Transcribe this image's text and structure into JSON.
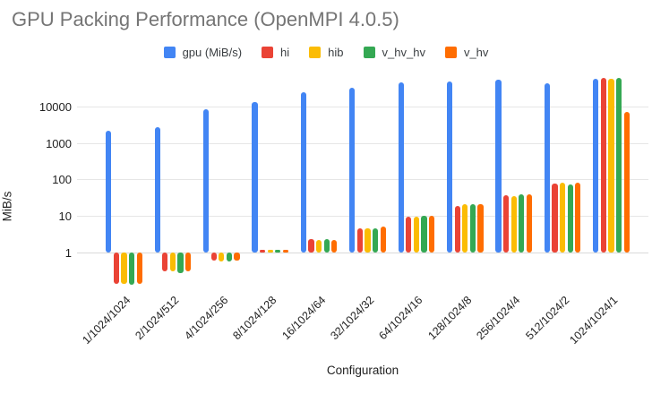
{
  "chart_data": {
    "type": "bar",
    "title": "GPU Packing Performance (OpenMPI 4.0.5)",
    "xlabel": "Configuration",
    "ylabel": "MiB/s",
    "y_scale": "log",
    "y_ticks": [
      1,
      10,
      100,
      1000,
      10000
    ],
    "ylim": [
      0.1,
      70000
    ],
    "grid": true,
    "legend_position": "top",
    "categories": [
      "1/1024/1024",
      "2/1024/512",
      "4/1024/256",
      "8/1024/128",
      "16/1024/64",
      "32/1024/32",
      "64/1024/16",
      "128/1024/8",
      "256/1024/4",
      "512/1024/2",
      "1024/1024/1"
    ],
    "series": [
      {
        "name": "gpu (MiB/s)",
        "color": "#4285F4",
        "values": [
          2200,
          2700,
          8500,
          13000,
          24000,
          32000,
          46000,
          49000,
          54000,
          44000,
          57000
        ]
      },
      {
        "name": "hi",
        "color": "#EA4335",
        "values": [
          0.14,
          0.3,
          0.6,
          1.2,
          2.3,
          4.7,
          9.7,
          19,
          37,
          75,
          59000
        ]
      },
      {
        "name": "hib",
        "color": "#FBBC04",
        "values": [
          0.14,
          0.3,
          0.58,
          1.2,
          2.2,
          4.5,
          9.5,
          21,
          36,
          80,
          57000
        ]
      },
      {
        "name": "v_hv_hv",
        "color": "#34A853",
        "values": [
          0.13,
          0.27,
          0.58,
          1.2,
          2.3,
          4.7,
          10,
          21.5,
          40,
          74,
          59000
        ]
      },
      {
        "name": "v_hv",
        "color": "#FF6D01",
        "values": [
          0.14,
          0.3,
          0.6,
          1.2,
          2.2,
          5.0,
          10.2,
          20.5,
          39,
          80,
          6900
        ]
      }
    ]
  }
}
